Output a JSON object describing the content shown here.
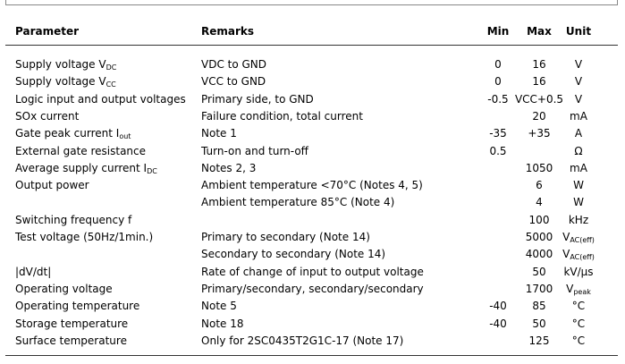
{
  "table": {
    "header": [
      "Parameter",
      "Remarks",
      "Min",
      "Max",
      "Unit"
    ],
    "rows": [
      {
        "parameter": {
          "text": "Supply voltage V",
          "sub": "DC"
        },
        "remarks": "VDC to GND",
        "min": "0",
        "max": "16",
        "unit": "V"
      },
      {
        "parameter": {
          "text": "Supply voltage V",
          "sub": "CC"
        },
        "remarks": "VCC to GND",
        "min": "0",
        "max": "16",
        "unit": "V"
      },
      {
        "parameter": "Logic input and output voltages",
        "remarks": "Primary side, to GND",
        "min": "-0.5",
        "max": "VCC+0.5",
        "unit": "V"
      },
      {
        "parameter": "SOx current",
        "remarks": "Failure condition, total current",
        "max": "20",
        "unit": "mA"
      },
      {
        "parameter": {
          "text": "Gate peak current I",
          "sub": "out"
        },
        "remarks": "Note 1",
        "min": "-35",
        "max": "+35",
        "unit": "A"
      },
      {
        "parameter": "External gate resistance",
        "remarks": "Turn-on and turn-off",
        "min": "0.5",
        "unit": "Ω"
      },
      {
        "parameter": {
          "text": "Average supply current I",
          "sub": "DC"
        },
        "remarks": "Notes 2, 3",
        "max": "1050",
        "unit": "mA"
      },
      {
        "parameter": "Output power",
        "remarks": "Ambient temperature <70°C (Notes 4, 5)",
        "max": "6",
        "unit": "W"
      },
      {
        "remarks": "Ambient temperature 85°C (Note 4)",
        "max": "4",
        "unit": "W"
      },
      {
        "parameter": "Switching frequency f",
        "max": "100",
        "unit": "kHz"
      },
      {
        "parameter": "Test voltage (50Hz/1min.)",
        "remarks": "Primary to secondary (Note 14)",
        "max": "5000",
        "unit": {
          "text": "V",
          "sub": "AC(eff)"
        }
      },
      {
        "remarks": "Secondary to secondary (Note 14)",
        "max": "4000",
        "unit": {
          "text": "V",
          "sub": "AC(eff)"
        }
      },
      {
        "parameter": "|dV/dt|",
        "remarks": "Rate of change of input to output voltage",
        "max": "50",
        "unit": "kV/μs"
      },
      {
        "parameter": "Operating voltage",
        "remarks": "Primary/secondary, secondary/secondary",
        "max": "1700",
        "unit": {
          "text": "V",
          "sub": "peak"
        }
      },
      {
        "parameter": "Operating temperature",
        "remarks": "Note 5",
        "min": "-40",
        "max": "85",
        "unit": "°C"
      },
      {
        "parameter": "Storage temperature",
        "remarks": "Note 18",
        "min": "-40",
        "max": "50",
        "unit": "°C"
      },
      {
        "parameter": "Surface temperature",
        "remarks": "Only for 2SC0435T2G1C-17 (Note 17)",
        "max": "125",
        "unit": "°C"
      }
    ]
  }
}
